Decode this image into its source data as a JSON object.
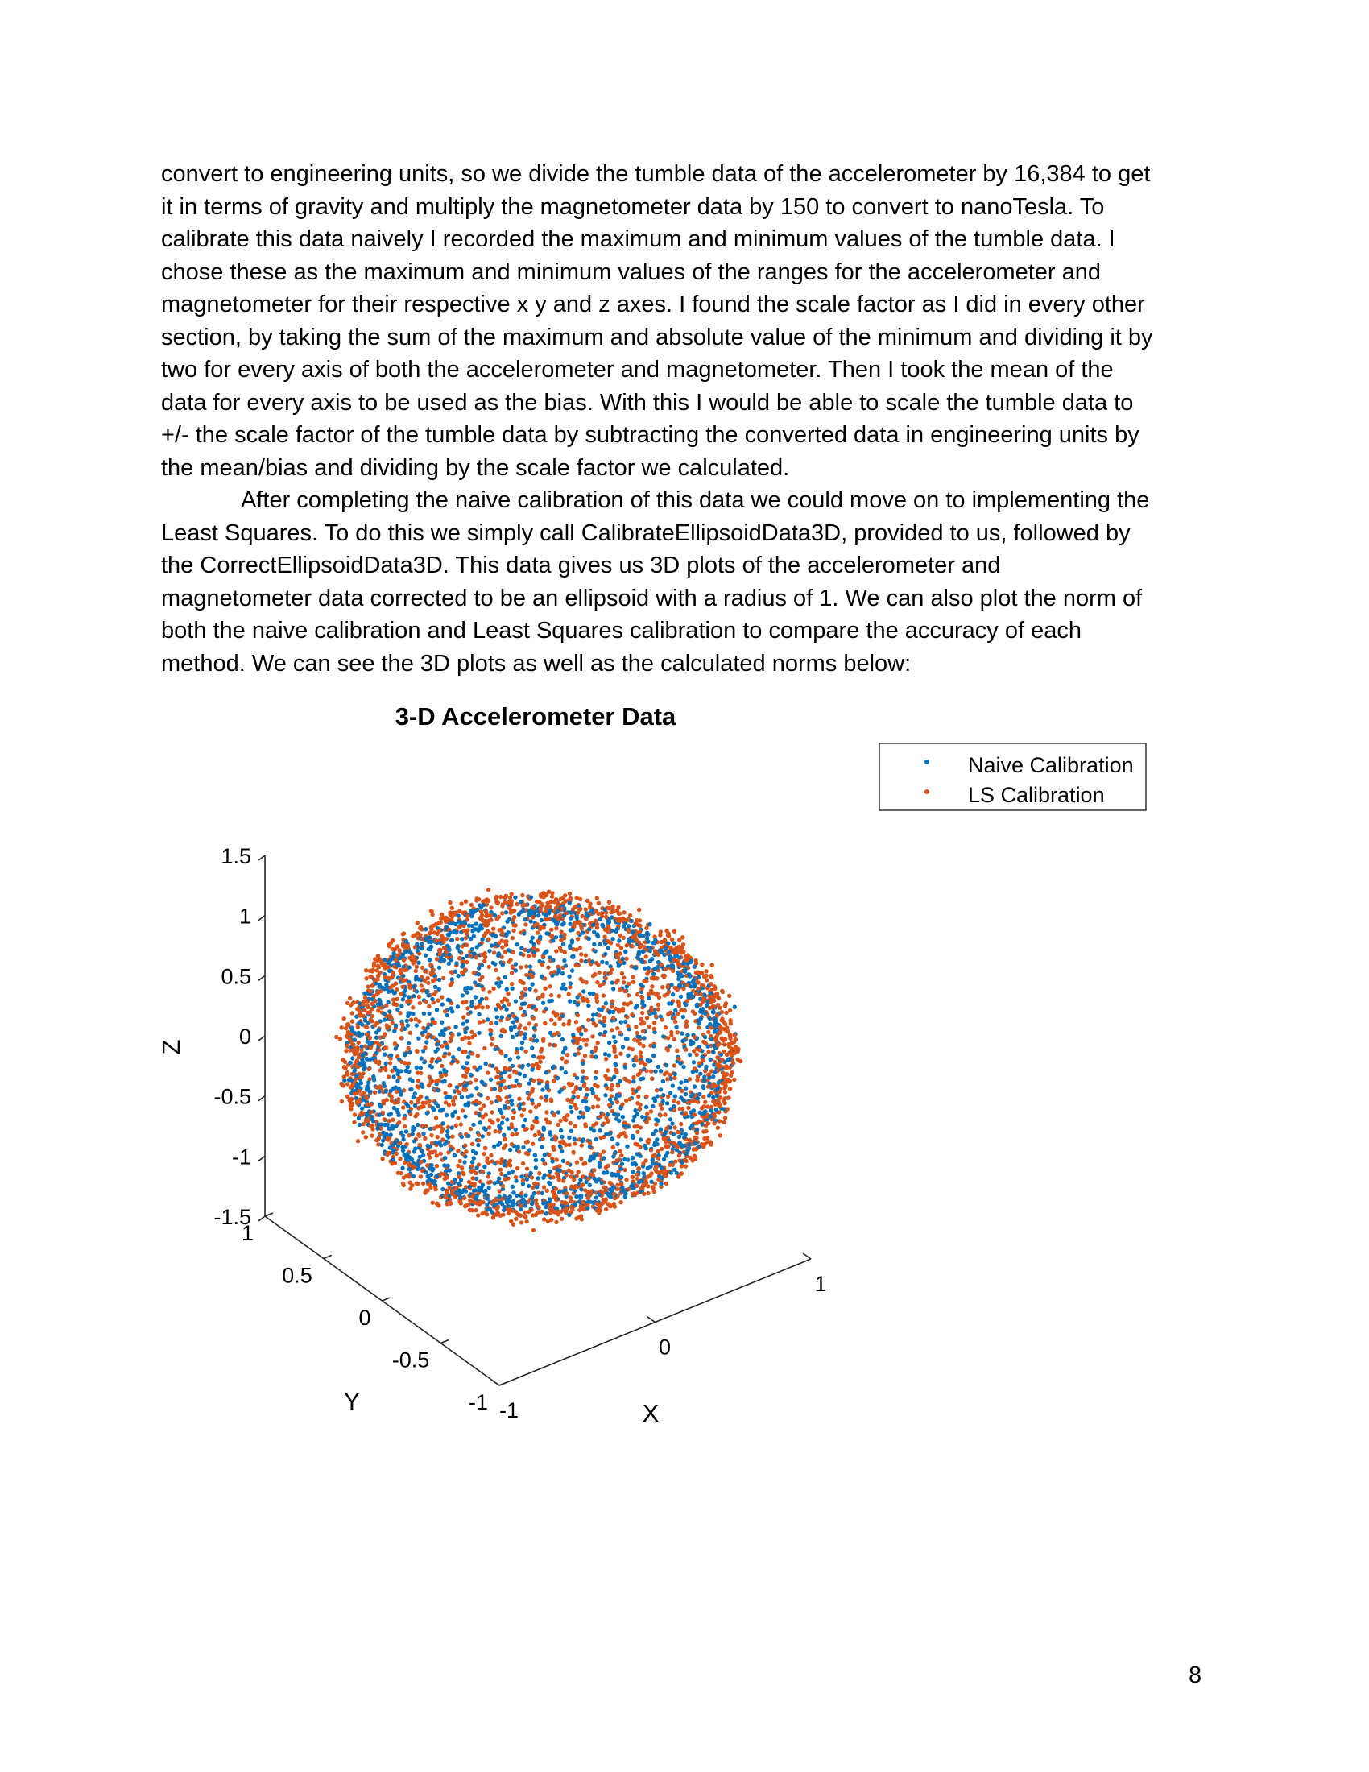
{
  "body": {
    "paragraph1_lines": [
      "convert to engineering units, so we divide the tumble data of the accelerometer by 16,384 to get",
      "it in terms of gravity and multiply the magnetometer data by 150 to convert to nanoTesla. To",
      "calibrate this data naively I recorded the maximum and minimum values of the tumble data. I",
      "chose these as the maximum and minimum values of the ranges for the accelerometer and",
      "magnetometer for their respective x y and z axes. I found the scale factor as I did in every other",
      "section, by taking the sum of the maximum and absolute value of the minimum and dividing it by",
      "two for every axis of both the accelerometer and magnetometer. Then I took the mean of the",
      "data for every axis to be used as the bias. With this I would be able to scale the tumble data to",
      "+/- the scale factor of the tumble data by subtracting the converted data in engineering units by",
      "the mean/bias and dividing by the scale factor we calculated."
    ],
    "paragraph2_lines": [
      "After completing the naive calibration of this data we could move on to implementing the",
      "Least Squares. To do this we simply call CalibrateEllipsoidData3D, provided to us, followed by",
      "the CorrectEllipsoidData3D. This data gives us 3D plots of the accelerometer and",
      "magnetometer data corrected to be an ellipsoid with a radius of 1. We can also plot the norm of",
      "both the naive calibration and Least Squares calibration to compare the accuracy of each",
      "method. We can see the 3D plots as well as the calculated norms below:"
    ]
  },
  "chart_data": {
    "type": "scatter",
    "title": "3-D Accelerometer Data",
    "xlabel": "X",
    "ylabel": "Y",
    "zlabel": "Z",
    "xlim": [
      -1,
      1
    ],
    "ylim": [
      -1,
      1
    ],
    "zlim": [
      -1.5,
      1.5
    ],
    "x_ticks": [
      "-1",
      "0",
      "1"
    ],
    "y_ticks": [
      "-1",
      "-0.5",
      "0",
      "0.5",
      "1"
    ],
    "z_ticks": [
      "1.5",
      "1",
      "0.5",
      "0",
      "-0.5",
      "-1",
      "-1.5"
    ],
    "legend_position": "top-right",
    "series": [
      {
        "name": "Naive Calibration",
        "color": "#0072BD",
        "shape": "sphere",
        "radius": 0.95,
        "points": 1900
      },
      {
        "name": "LS Calibration",
        "color": "#D95319",
        "shape": "sphere",
        "radius": 1.0,
        "points": 2600
      }
    ]
  },
  "page_number": "8"
}
